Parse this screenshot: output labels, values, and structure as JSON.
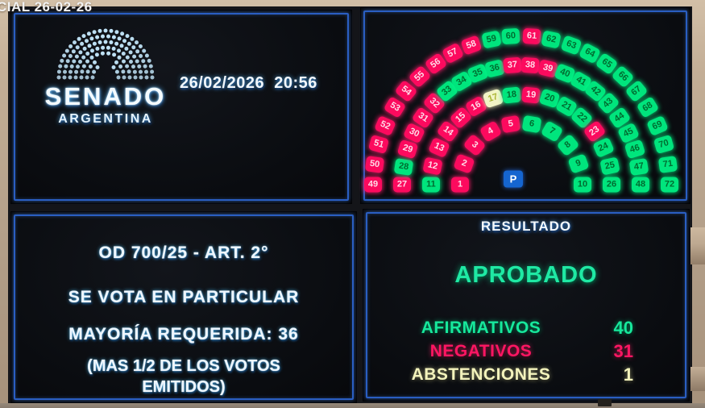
{
  "overlay": {
    "session_label": "CIAL 26-02-26"
  },
  "clock_panel": {
    "logo_title": "SENADO",
    "logo_subtitle": "ARGENTINA",
    "datetime": "26/02/2026  20:56"
  },
  "vote_info_panel": {
    "line1": "OD 700/25 - ART. 2°",
    "line2": "SE VOTA EN PARTICULAR",
    "line3": "MAYORÍA REQUERIDA: 36",
    "line4": "(MAS 1/2 DE LOS VOTOS EMITIDOS)"
  },
  "result_panel": {
    "title": "RESULTADO",
    "verdict": "APROBADO",
    "verdict_color": "#1fe9a4",
    "rows": [
      {
        "label": "AFIRMATIVOS",
        "value": "40",
        "status": "affirmative"
      },
      {
        "label": "NEGATIVOS",
        "value": "31",
        "status": "negative"
      },
      {
        "label": "ABSTENCIONES",
        "value": "1",
        "status": "abstention"
      }
    ],
    "row_colors": {
      "affirmative": "#17e89c",
      "negative": "#ff1663",
      "abstention": "#f3f3bc"
    }
  },
  "seat_map": {
    "president_label": "P",
    "seat_colors": {
      "affirmative": "#00e57d",
      "negative": "#fc0a5e",
      "abstention": "#f2f4c6",
      "president": "#1565d0"
    },
    "seat_text_colors": {
      "affirmative": "#006c30",
      "negative": "#ffdce8",
      "abstention": "#a9b433"
    },
    "rows": [
      {
        "radius": 76,
        "seats": [
          {
            "n": 1,
            "v": "negative"
          },
          {
            "n": 2,
            "v": "negative"
          },
          {
            "n": 3,
            "v": "negative"
          },
          {
            "n": 4,
            "v": "negative"
          },
          {
            "n": 5,
            "v": "negative"
          },
          {
            "n": 6,
            "v": "affirmative"
          },
          {
            "n": 7,
            "v": "affirmative"
          },
          {
            "n": 8,
            "v": "affirmative"
          },
          {
            "n": 9,
            "v": "affirmative"
          },
          {
            "n": 10,
            "v": "affirmative"
          }
        ]
      },
      {
        "radius": 112,
        "seats": [
          {
            "n": 11,
            "v": "affirmative"
          },
          {
            "n": 12,
            "v": "negative"
          },
          {
            "n": 13,
            "v": "negative"
          },
          {
            "n": 14,
            "v": "negative"
          },
          {
            "n": 15,
            "v": "negative"
          },
          {
            "n": 16,
            "v": "negative"
          },
          {
            "n": 17,
            "v": "abstention"
          },
          {
            "n": 18,
            "v": "affirmative"
          },
          {
            "n": 19,
            "v": "negative"
          },
          {
            "n": 20,
            "v": "affirmative"
          },
          {
            "n": 21,
            "v": "affirmative"
          },
          {
            "n": 22,
            "v": "affirmative"
          },
          {
            "n": 23,
            "v": "negative"
          },
          {
            "n": 24,
            "v": "affirmative"
          },
          {
            "n": 25,
            "v": "affirmative"
          },
          {
            "n": 26,
            "v": "affirmative"
          }
        ]
      },
      {
        "radius": 148,
        "seats": [
          {
            "n": 27,
            "v": "negative"
          },
          {
            "n": 28,
            "v": "affirmative"
          },
          {
            "n": 29,
            "v": "negative"
          },
          {
            "n": 30,
            "v": "negative"
          },
          {
            "n": 31,
            "v": "negative"
          },
          {
            "n": 32,
            "v": "negative"
          },
          {
            "n": 33,
            "v": "affirmative"
          },
          {
            "n": 34,
            "v": "affirmative"
          },
          {
            "n": 35,
            "v": "affirmative"
          },
          {
            "n": 36,
            "v": "affirmative"
          },
          {
            "n": 37,
            "v": "negative"
          },
          {
            "n": 38,
            "v": "negative"
          },
          {
            "n": 39,
            "v": "negative"
          },
          {
            "n": 40,
            "v": "affirmative"
          },
          {
            "n": 41,
            "v": "affirmative"
          },
          {
            "n": 42,
            "v": "affirmative"
          },
          {
            "n": 43,
            "v": "affirmative"
          },
          {
            "n": 44,
            "v": "affirmative"
          },
          {
            "n": 45,
            "v": "affirmative"
          },
          {
            "n": 46,
            "v": "affirmative"
          },
          {
            "n": 47,
            "v": "affirmative"
          },
          {
            "n": 48,
            "v": "affirmative"
          }
        ]
      },
      {
        "radius": 184,
        "seats": [
          {
            "n": 49,
            "v": "negative"
          },
          {
            "n": 50,
            "v": "negative"
          },
          {
            "n": 51,
            "v": "negative"
          },
          {
            "n": 52,
            "v": "negative"
          },
          {
            "n": 53,
            "v": "negative"
          },
          {
            "n": 54,
            "v": "negative"
          },
          {
            "n": 55,
            "v": "negative"
          },
          {
            "n": 56,
            "v": "negative"
          },
          {
            "n": 57,
            "v": "negative"
          },
          {
            "n": 58,
            "v": "negative"
          },
          {
            "n": 59,
            "v": "affirmative"
          },
          {
            "n": 60,
            "v": "affirmative"
          },
          {
            "n": 61,
            "v": "negative"
          },
          {
            "n": 62,
            "v": "affirmative"
          },
          {
            "n": 63,
            "v": "affirmative"
          },
          {
            "n": 64,
            "v": "affirmative"
          },
          {
            "n": 65,
            "v": "affirmative"
          },
          {
            "n": 66,
            "v": "affirmative"
          },
          {
            "n": 67,
            "v": "affirmative"
          },
          {
            "n": 68,
            "v": "affirmative"
          },
          {
            "n": 69,
            "v": "affirmative"
          },
          {
            "n": 70,
            "v": "affirmative"
          },
          {
            "n": 71,
            "v": "affirmative"
          },
          {
            "n": 72,
            "v": "affirmative"
          }
        ]
      }
    ]
  }
}
